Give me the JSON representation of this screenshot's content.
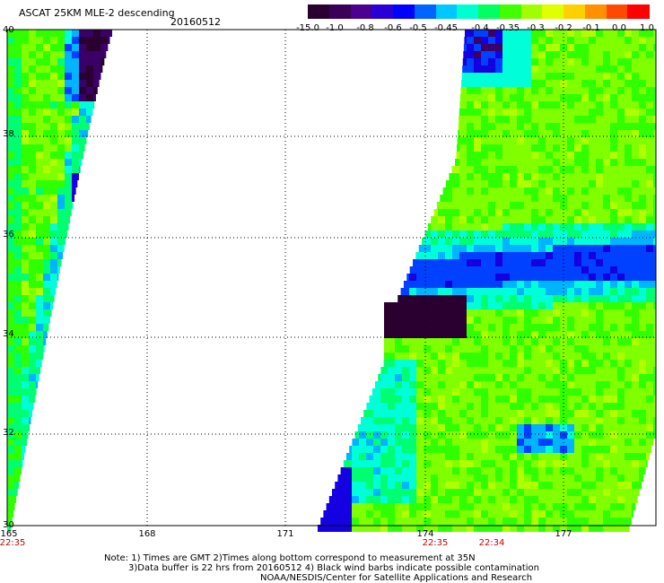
{
  "header": {
    "title": "ASCAT 25KM MLE-2 descending",
    "date": "20160512"
  },
  "colorbar": {
    "labels": [
      "-15.0",
      "-1.0",
      "-0.8",
      "-0.6",
      "-0.5",
      "-0.45",
      "-0.4",
      "-0.35",
      "-0.3",
      "-0.2",
      "-0.1",
      "0.0",
      "1.0"
    ],
    "colors": [
      "#2a0030",
      "#3a0058",
      "#4a0090",
      "#2a00d8",
      "#0000ff",
      "#0064ff",
      "#00c8ff",
      "#00ffd0",
      "#00ff60",
      "#40ff00",
      "#a0ff00",
      "#e0ff00",
      "#ffd000",
      "#ff9000",
      "#ff4800",
      "#ff0000"
    ]
  },
  "axes": {
    "lat_labels": [
      "40",
      "38",
      "36",
      "34",
      "32",
      "30"
    ],
    "lon_labels": [
      "165",
      "168",
      "171",
      "174",
      "177"
    ]
  },
  "times": {
    "left": "22:35",
    "mid": "22:35",
    "right": "22:34"
  },
  "notes": {
    "line1": "Note: 1) Times are GMT 2)Times along bottom correspond to measurement at 35N",
    "line2": "3)Data buffer is 22 hrs from 20160512 4) Black wind barbs indicate possible contamination",
    "line3": "NOAA/NESDIS/Center for Satellite Applications and Research"
  }
}
